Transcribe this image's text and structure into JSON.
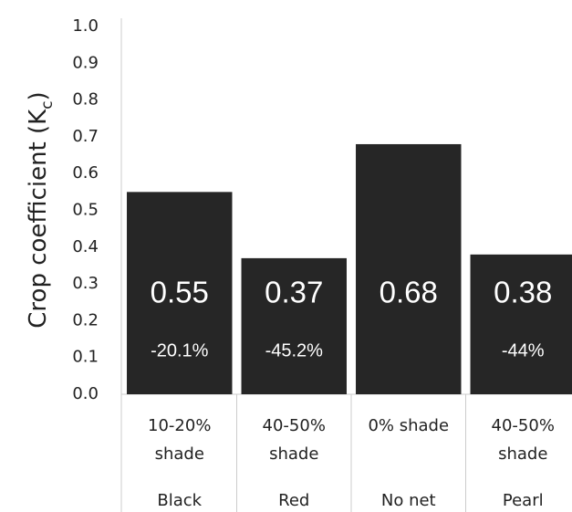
{
  "chart_data": {
    "type": "bar",
    "ylabel": {
      "text": "Crop coefficient (K",
      "subscript": "c",
      "close": ")"
    },
    "categories": [
      [
        "10-20%",
        "shade"
      ],
      [
        "40-50%",
        "shade"
      ],
      [
        "0% shade"
      ],
      [
        "40-50%",
        "shade"
      ]
    ],
    "groups": [
      "Black",
      "Red",
      "No net",
      "Pearl"
    ],
    "values": [
      0.55,
      0.37,
      0.68,
      0.38
    ],
    "changes": [
      -20.1,
      -45.2,
      null,
      -44
    ],
    "change_labels": [
      "-20.1%",
      "-45.2%",
      null,
      "-44%"
    ],
    "color": "#262626",
    "ylim": [
      0,
      1
    ],
    "yticks": [
      {
        "value": 0,
        "label": "0.0"
      },
      0.1,
      0.2,
      0.3,
      0.4,
      0.5,
      0.6,
      0.7,
      0.8,
      0.9,
      {
        "value": 1,
        "label": "1.0"
      }
    ]
  }
}
